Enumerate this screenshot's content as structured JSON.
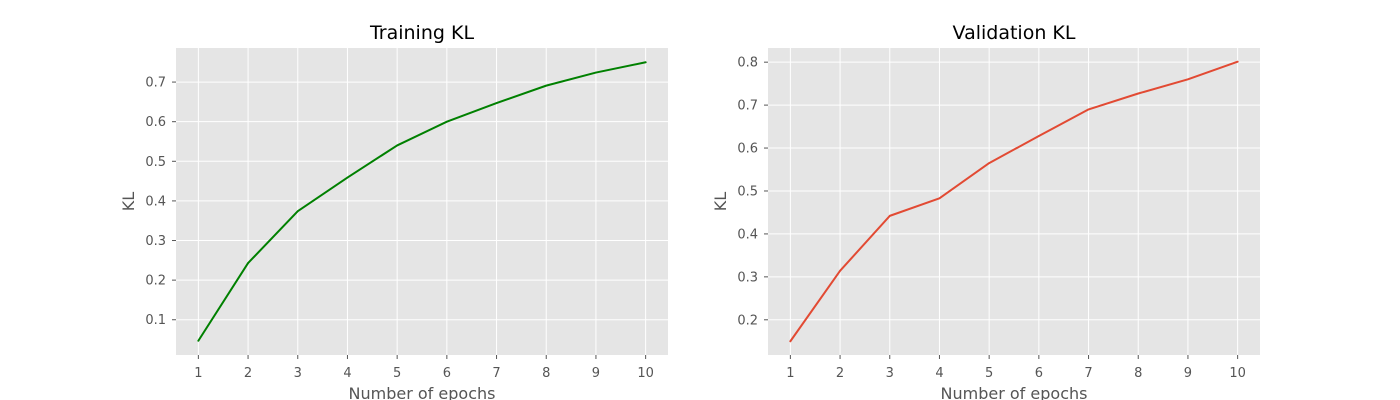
{
  "chart_data": [
    {
      "type": "line",
      "title": "Training KL",
      "xlabel": "Number of epochs",
      "ylabel": "KL",
      "x": [
        1,
        2,
        3,
        4,
        5,
        6,
        7,
        8,
        9,
        10
      ],
      "xticks": [
        "1",
        "2",
        "3",
        "4",
        "5",
        "6",
        "7",
        "8",
        "9",
        "10"
      ],
      "yticks": [
        "0.1",
        "0.2",
        "0.3",
        "0.4",
        "0.5",
        "0.6",
        "0.7"
      ],
      "xlim": [
        0.55,
        10.45
      ],
      "ylim": [
        0.011,
        0.786
      ],
      "grid": true,
      "series": [
        {
          "color": "#008000",
          "values": [
            0.047,
            0.243,
            0.374,
            0.459,
            0.54,
            0.6,
            0.647,
            0.691,
            0.724,
            0.75
          ]
        }
      ]
    },
    {
      "type": "line",
      "title": "Validation KL",
      "xlabel": "Number of epochs",
      "ylabel": "KL",
      "x": [
        1,
        2,
        3,
        4,
        5,
        6,
        7,
        8,
        9,
        10
      ],
      "xticks": [
        "1",
        "2",
        "3",
        "4",
        "5",
        "6",
        "7",
        "8",
        "9",
        "10"
      ],
      "yticks": [
        "0.2",
        "0.3",
        "0.4",
        "0.5",
        "0.6",
        "0.7",
        "0.8"
      ],
      "xlim": [
        0.55,
        10.45
      ],
      "ylim": [
        0.118,
        0.833
      ],
      "grid": true,
      "series": [
        {
          "color": "#e24a33",
          "values": [
            0.15,
            0.314,
            0.442,
            0.483,
            0.565,
            0.628,
            0.69,
            0.727,
            0.76,
            0.801
          ]
        }
      ]
    }
  ]
}
